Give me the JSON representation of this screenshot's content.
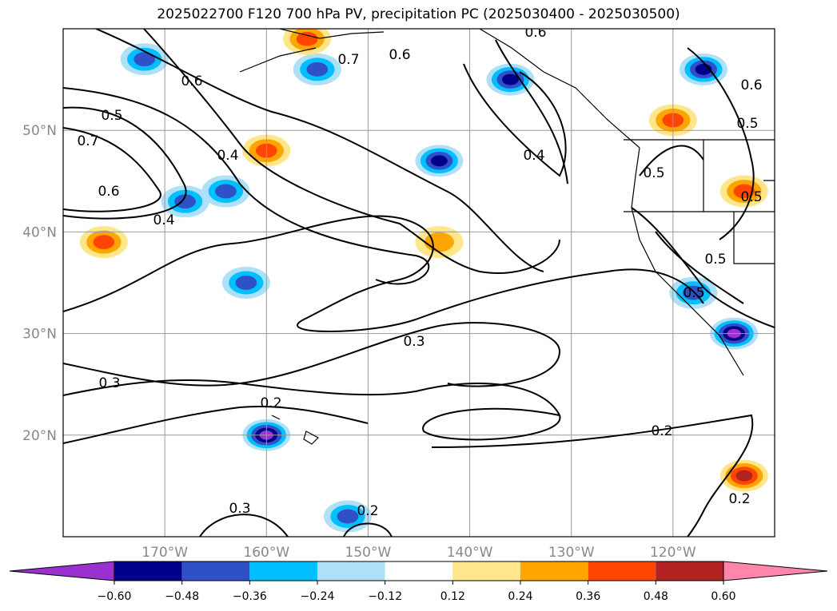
{
  "chart_data": {
    "type": "heatmap",
    "title": "2025022700 F120 700 hPa PV, precipitation PC (2025030400 - 2025030500)",
    "lat_ticks": [
      "50°N",
      "40°N",
      "30°N",
      "20°N"
    ],
    "lon_ticks": [
      "170°W",
      "160°W",
      "150°W",
      "140°W",
      "130°W",
      "120°W"
    ],
    "lon_range": [
      180,
      110
    ],
    "lat_range": [
      10,
      60
    ],
    "contour_labels": [
      "0.6",
      "0.7",
      "0.6",
      "0.6",
      "0.5",
      "0.7",
      "0.4",
      "0.6",
      "0.4",
      "0.4",
      "0.5",
      "0.5",
      "0.6",
      "0.5",
      "0.5",
      "0.5",
      "0.3",
      "0.3",
      "0.2",
      "0.2",
      "0.3",
      "0.2",
      "0.2"
    ],
    "colorbar": {
      "ticks": [
        "−0.60",
        "−0.48",
        "−0.36",
        "−0.24",
        "−0.12",
        "0.12",
        "0.24",
        "0.36",
        "0.48",
        "0.60"
      ],
      "colors": [
        "#9b30d0",
        "#00008b",
        "#3050c8",
        "#00bfff",
        "#aee0f7",
        "#ffffff",
        "#ffe68a",
        "#ffa500",
        "#ff4500",
        "#b22222",
        "#ff85aa"
      ]
    },
    "precip_blobs": [
      {
        "lon": 172,
        "lat": 57,
        "level": -0.36
      },
      {
        "lon": 155,
        "lat": 56,
        "level": -0.36
      },
      {
        "lon": 136,
        "lat": 55,
        "level": -0.48
      },
      {
        "lon": 143,
        "lat": 47,
        "level": -0.48
      },
      {
        "lon": 164,
        "lat": 44,
        "level": -0.36
      },
      {
        "lon": 168,
        "lat": 43,
        "level": -0.36
      },
      {
        "lon": 162,
        "lat": 35,
        "level": -0.36
      },
      {
        "lon": 152,
        "lat": 12,
        "level": -0.36
      },
      {
        "lon": 160,
        "lat": 20,
        "level": -0.6
      },
      {
        "lon": 117,
        "lat": 56,
        "level": -0.48
      },
      {
        "lon": 118,
        "lat": 34,
        "level": -0.36
      },
      {
        "lon": 114,
        "lat": 30,
        "level": -0.6
      },
      {
        "lon": 160,
        "lat": 48,
        "level": 0.36
      },
      {
        "lon": 176,
        "lat": 39,
        "level": 0.36
      },
      {
        "lon": 156,
        "lat": 59,
        "level": 0.36
      },
      {
        "lon": 113,
        "lat": 44,
        "level": 0.36
      },
      {
        "lon": 120,
        "lat": 51,
        "level": 0.36
      },
      {
        "lon": 113,
        "lat": 16,
        "level": 0.48
      },
      {
        "lon": 143,
        "lat": 39,
        "level": 0.24
      }
    ]
  }
}
